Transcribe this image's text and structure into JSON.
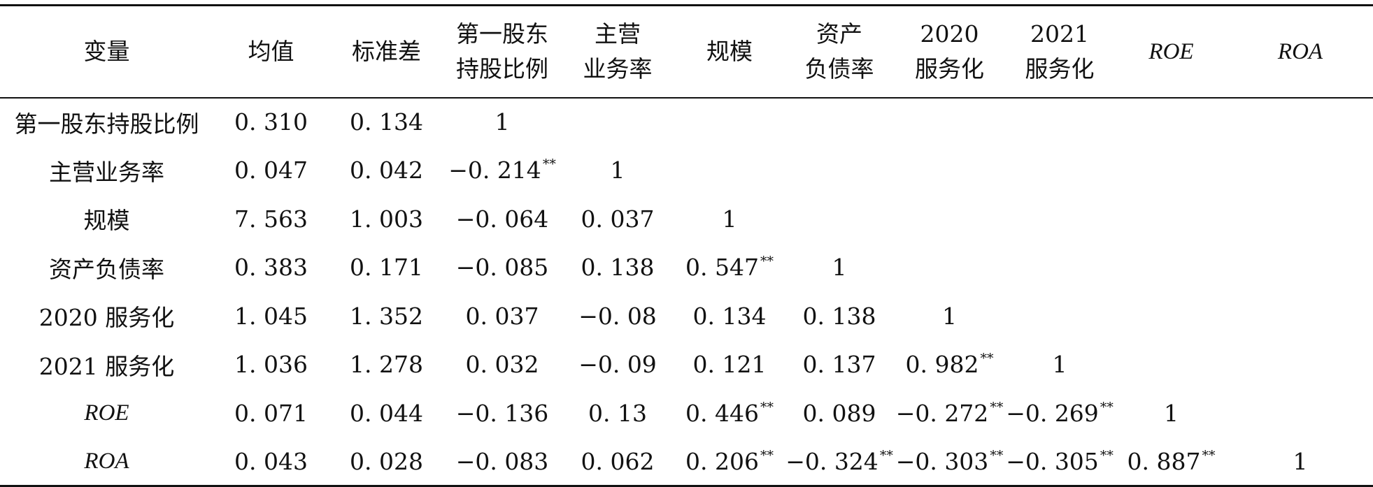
{
  "table": {
    "header": [
      [
        "变量"
      ],
      [
        "均值"
      ],
      [
        "标准差"
      ],
      [
        "第一股东",
        "持股比例"
      ],
      [
        "主营",
        "业务率"
      ],
      [
        "规模"
      ],
      [
        "资产",
        "负债率"
      ],
      [
        "2020",
        "服务化"
      ],
      [
        "2021",
        "服务化"
      ],
      [
        "ROE"
      ],
      [
        "ROA"
      ]
    ],
    "rows": [
      {
        "label": "第一股东持股比例",
        "cells": [
          [
            "0. 310",
            ""
          ],
          [
            "0. 134",
            ""
          ],
          [
            "1",
            ""
          ],
          [
            "",
            ""
          ],
          [
            "",
            ""
          ],
          [
            "",
            ""
          ],
          [
            "",
            ""
          ],
          [
            "",
            ""
          ],
          [
            "",
            ""
          ],
          [
            "",
            ""
          ]
        ]
      },
      {
        "label": "主营业务率",
        "cells": [
          [
            "0. 047",
            ""
          ],
          [
            "0. 042",
            ""
          ],
          [
            "−0. 214",
            "**"
          ],
          [
            "1",
            ""
          ],
          [
            "",
            ""
          ],
          [
            "",
            ""
          ],
          [
            "",
            ""
          ],
          [
            "",
            ""
          ],
          [
            "",
            ""
          ],
          [
            "",
            ""
          ]
        ]
      },
      {
        "label": "规模",
        "cells": [
          [
            "7. 563",
            ""
          ],
          [
            "1. 003",
            ""
          ],
          [
            "−0. 064",
            ""
          ],
          [
            "0. 037",
            ""
          ],
          [
            "1",
            ""
          ],
          [
            "",
            ""
          ],
          [
            "",
            ""
          ],
          [
            "",
            ""
          ],
          [
            "",
            ""
          ],
          [
            "",
            ""
          ]
        ]
      },
      {
        "label": "资产负债率",
        "cells": [
          [
            "0. 383",
            ""
          ],
          [
            "0. 171",
            ""
          ],
          [
            "−0. 085",
            ""
          ],
          [
            "0. 138",
            ""
          ],
          [
            "0. 547",
            "**"
          ],
          [
            "1",
            ""
          ],
          [
            "",
            ""
          ],
          [
            "",
            ""
          ],
          [
            "",
            ""
          ],
          [
            "",
            ""
          ]
        ]
      },
      {
        "label": "2020 服务化",
        "cells": [
          [
            "1. 045",
            ""
          ],
          [
            "1. 352",
            ""
          ],
          [
            "0. 037",
            ""
          ],
          [
            "−0. 08",
            ""
          ],
          [
            "0. 134",
            ""
          ],
          [
            "0. 138",
            ""
          ],
          [
            "1",
            ""
          ],
          [
            "",
            ""
          ],
          [
            "",
            ""
          ],
          [
            "",
            ""
          ]
        ]
      },
      {
        "label": "2021 服务化",
        "cells": [
          [
            "1. 036",
            ""
          ],
          [
            "1. 278",
            ""
          ],
          [
            "0. 032",
            ""
          ],
          [
            "−0. 09",
            ""
          ],
          [
            "0. 121",
            ""
          ],
          [
            "0. 137",
            ""
          ],
          [
            "0. 982",
            "**"
          ],
          [
            "1",
            ""
          ],
          [
            "",
            ""
          ],
          [
            "",
            ""
          ]
        ]
      },
      {
        "label": "ROE",
        "cells": [
          [
            "0. 071",
            ""
          ],
          [
            "0. 044",
            ""
          ],
          [
            "−0. 136",
            ""
          ],
          [
            "0. 13",
            ""
          ],
          [
            "0. 446",
            "**"
          ],
          [
            "0. 089",
            ""
          ],
          [
            "−0. 272",
            "**"
          ],
          [
            "−0. 269",
            "**"
          ],
          [
            "1",
            ""
          ],
          [
            "",
            ""
          ]
        ]
      },
      {
        "label": "ROA",
        "cells": [
          [
            "0. 043",
            ""
          ],
          [
            "0. 028",
            ""
          ],
          [
            "−0. 083",
            ""
          ],
          [
            "0. 062",
            ""
          ],
          [
            "0. 206",
            "**"
          ],
          [
            "−0. 324",
            "**"
          ],
          [
            "−0. 303",
            "**"
          ],
          [
            "−0. 305",
            "**"
          ],
          [
            "0. 887",
            "**"
          ],
          [
            "1",
            ""
          ]
        ]
      }
    ]
  }
}
